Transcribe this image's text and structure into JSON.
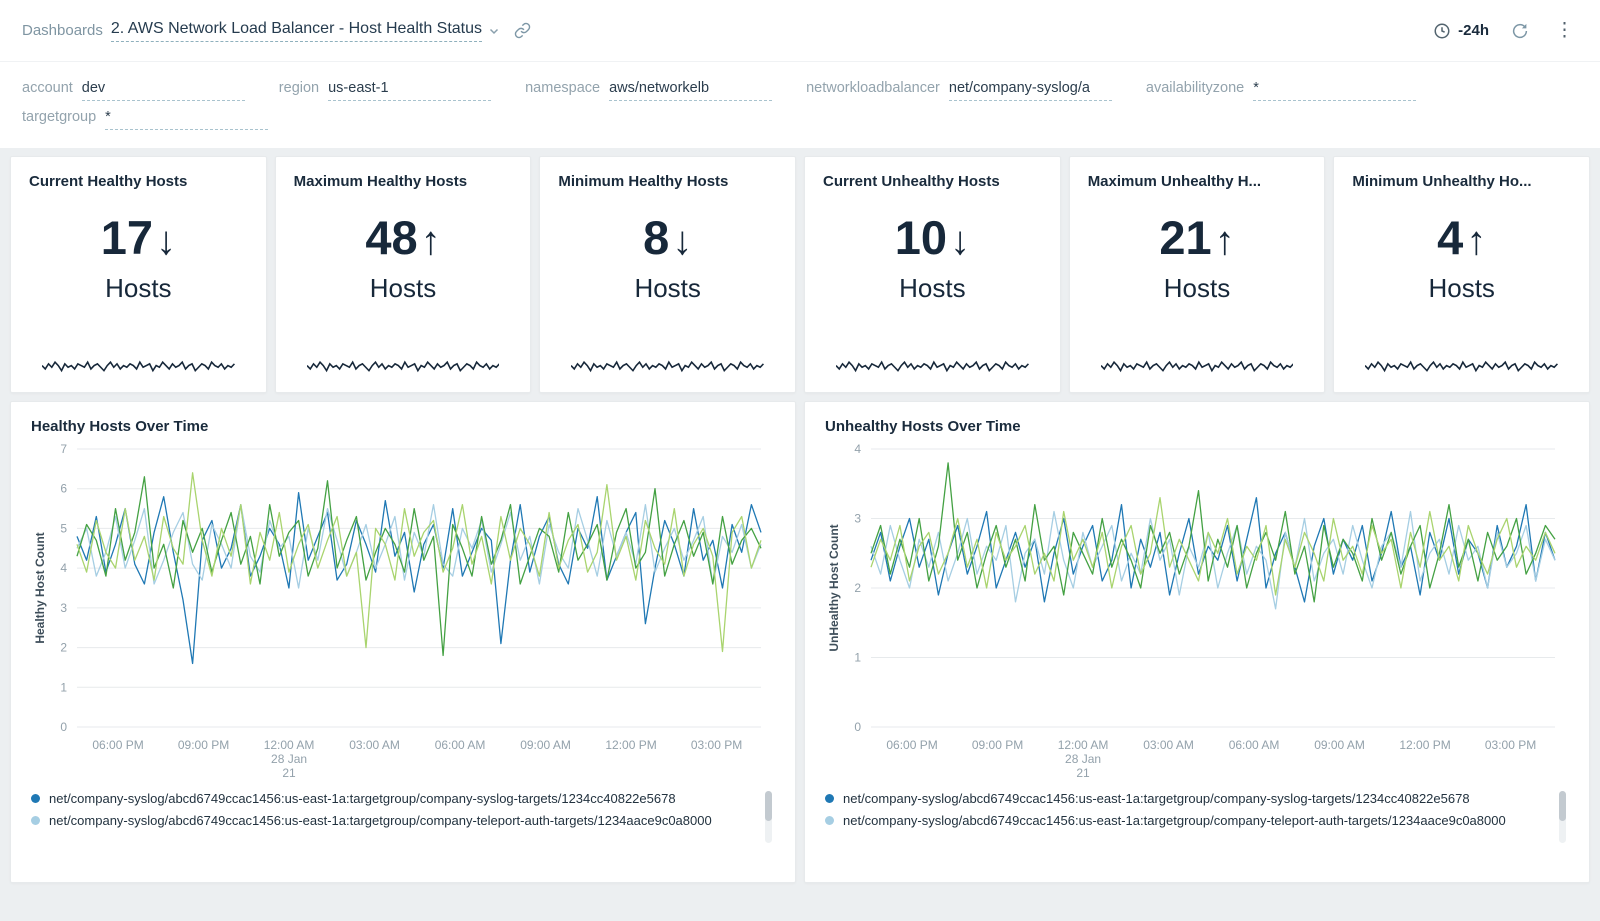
{
  "topbar": {
    "breadcrumb": "Dashboards",
    "title": "2. AWS Network Load Balancer - Host Health Status",
    "time_range": "-24h",
    "icons": {
      "dropdown": "chevron-down",
      "share": "link",
      "time": "clock",
      "refresh": "circular-arrows",
      "more": "vertical-ellipsis"
    }
  },
  "filters": [
    {
      "label": "account",
      "value": "dev"
    },
    {
      "label": "region",
      "value": "us-east-1"
    },
    {
      "label": "namespace",
      "value": "aws/networkelb"
    },
    {
      "label": "networkloadbalancer",
      "value": "net/company-syslog/a"
    },
    {
      "label": "availabilityzone",
      "value": "*"
    },
    {
      "label": "targetgroup",
      "value": "*"
    }
  ],
  "stat_panels": [
    {
      "title": "Current Healthy Hosts",
      "value": "17",
      "arrow": "↓",
      "unit": "Hosts"
    },
    {
      "title": "Maximum Healthy Hosts",
      "value": "48",
      "arrow": "↑",
      "unit": "Hosts"
    },
    {
      "title": "Minimum Healthy Hosts",
      "value": "8",
      "arrow": "↓",
      "unit": "Hosts"
    },
    {
      "title": "Current Unhealthy Hosts",
      "value": "10",
      "arrow": "↓",
      "unit": "Hosts"
    },
    {
      "title": "Maximum Unhealthy H...",
      "value": "21",
      "arrow": "↑",
      "unit": "Hosts"
    },
    {
      "title": "Minimum Unhealthy Ho...",
      "value": "4",
      "arrow": "↑",
      "unit": "Hosts"
    }
  ],
  "sparkline": [
    5,
    3,
    6,
    4,
    7,
    5,
    2,
    6,
    4,
    5,
    3,
    6,
    5,
    4,
    7,
    3,
    5,
    6,
    4,
    2,
    5,
    7,
    4,
    6,
    3,
    5,
    4,
    6,
    5,
    3,
    7,
    4,
    5,
    6,
    2,
    5,
    4,
    7,
    5,
    3,
    6,
    4,
    5,
    7,
    3,
    5,
    6,
    2,
    4,
    6,
    5,
    3,
    7,
    5,
    4,
    6,
    3,
    5,
    4,
    6
  ],
  "colors": {
    "accent_navy": "#17283a",
    "series": [
      "#1f78b4",
      "#a6cee3",
      "#44a143",
      "#a9d46e"
    ],
    "grid": "#e7eaec",
    "tick_text": "#93a1ab"
  },
  "chart_data": [
    {
      "type": "line",
      "title": "Healthy Hosts Over Time",
      "ylabel": "Healthy Host Count",
      "ylim": [
        0,
        7
      ],
      "yticks": [
        0,
        1,
        2,
        3,
        4,
        5,
        6,
        7
      ],
      "xticks": [
        {
          "pos": 0.06,
          "lines": [
            "06:00 PM"
          ]
        },
        {
          "pos": 0.185,
          "lines": [
            "09:00 PM"
          ]
        },
        {
          "pos": 0.31,
          "lines": [
            "12:00 AM",
            "28 Jan",
            "21"
          ]
        },
        {
          "pos": 0.435,
          "lines": [
            "03:00 AM"
          ]
        },
        {
          "pos": 0.56,
          "lines": [
            "06:00 AM"
          ]
        },
        {
          "pos": 0.685,
          "lines": [
            "09:00 AM"
          ]
        },
        {
          "pos": 0.81,
          "lines": [
            "12:00 PM"
          ]
        },
        {
          "pos": 0.935,
          "lines": [
            "03:00 PM"
          ]
        }
      ],
      "series": [
        {
          "name": "net/company-syslog/abcd6749ccac1456:us-east-1a:targetgroup/company-syslog-targets/1234cc40822e5678",
          "color": "#1f78b4",
          "values": [
            4.8,
            4.2,
            5.3,
            3.9,
            4.6,
            5.5,
            4.1,
            3.6,
            4.9,
            5.8,
            4.4,
            3.2,
            1.6,
            4.7,
            5.2,
            4.0,
            4.5,
            5.6,
            3.8,
            4.3,
            5.0,
            4.6,
            3.5,
            5.9,
            4.2,
            4.8,
            5.4,
            3.7,
            4.1,
            5.2,
            4.6,
            3.9,
            5.7,
            4.3,
            4.9,
            3.4,
            4.6,
            5.1,
            4.0,
            5.5,
            3.8,
            4.4,
            5.0,
            4.7,
            2.1,
            4.2,
            5.6,
            3.9,
            4.8,
            5.3,
            4.1,
            3.6,
            5.0,
            4.5,
            5.8,
            3.7,
            4.3,
            4.9,
            5.4,
            2.6,
            4.0,
            5.2,
            4.6,
            3.8,
            5.5,
            4.2,
            4.7,
            3.5,
            5.1,
            4.4,
            5.6,
            4.9
          ]
        },
        {
          "name": "net/company-syslog/abcd6749ccac1456:us-east-1a:targetgroup/company-teleport-auth-targets/1234aace9c0a8000",
          "color": "#a6cee3",
          "values": [
            4.5,
            5.0,
            3.8,
            4.4,
            5.3,
            4.0,
            4.7,
            5.5,
            3.6,
            4.2,
            4.9,
            5.4,
            4.1,
            3.7,
            5.1,
            4.6,
            4.0,
            5.6,
            4.3,
            3.9,
            5.2,
            4.5,
            4.8,
            3.5,
            5.0,
            4.2,
            5.5,
            4.7,
            3.8,
            4.4,
            5.1,
            4.0,
            4.6,
            5.3,
            3.7,
            4.9,
            4.3,
            5.6,
            4.1,
            3.8,
            5.0,
            4.5,
            5.2,
            3.9,
            4.6,
            5.4,
            4.2,
            4.8,
            3.6,
            5.1,
            4.4,
            4.0,
            5.5,
            4.7,
            3.8,
            5.2,
            4.3,
            4.9,
            4.1,
            5.6,
            3.9,
            4.5,
            5.0,
            4.2,
            4.7,
            5.3,
            3.6,
            4.8,
            4.4,
            5.1,
            4.0,
            4.6
          ]
        },
        {
          "name": "",
          "color": "#44a143",
          "values": [
            4.3,
            5.1,
            4.7,
            3.8,
            5.5,
            4.2,
            4.9,
            6.3,
            4.0,
            4.6,
            3.5,
            5.2,
            4.4,
            5.0,
            3.9,
            4.7,
            5.4,
            4.1,
            4.8,
            3.6,
            5.6,
            4.3,
            4.9,
            5.2,
            3.8,
            4.5,
            6.2,
            4.0,
            4.7,
            5.3,
            3.7,
            4.4,
            5.0,
            4.6,
            3.9,
            5.5,
            4.2,
            4.8,
            1.8,
            5.1,
            4.5,
            3.8,
            5.3,
            4.1,
            4.7,
            5.6,
            3.6,
            4.3,
            5.0,
            4.8,
            3.9,
            5.4,
            4.2,
            4.6,
            5.1,
            3.7,
            4.9,
            5.5,
            4.0,
            4.4,
            6.0,
            3.8,
            4.6,
            5.2,
            4.3,
            4.9,
            3.6,
            5.3,
            4.1,
            4.7,
            5.0,
            4.5
          ]
        },
        {
          "name": "",
          "color": "#a9d46e",
          "values": [
            4.6,
            3.9,
            5.2,
            4.4,
            4.0,
            5.5,
            4.2,
            4.8,
            3.7,
            5.3,
            4.5,
            4.1,
            6.4,
            4.7,
            3.8,
            5.0,
            4.3,
            5.6,
            3.6,
            4.9,
            4.2,
            5.4,
            3.9,
            4.6,
            5.1,
            4.0,
            4.7,
            5.3,
            3.8,
            4.4,
            2.0,
            5.0,
            4.6,
            3.7,
            5.5,
            4.3,
            4.9,
            5.2,
            3.9,
            4.5,
            5.6,
            4.1,
            4.8,
            3.6,
            5.3,
            4.2,
            5.0,
            4.6,
            3.8,
            5.4,
            4.0,
            4.7,
            5.1,
            3.9,
            4.4,
            6.1,
            4.2,
            4.8,
            3.7,
            5.2,
            4.5,
            4.1,
            5.5,
            3.8,
            4.6,
            5.0,
            4.3,
            1.9,
            4.9,
            5.3,
            4.0,
            4.7
          ]
        }
      ],
      "legend": [
        {
          "color": "#1f78b4",
          "label": "net/company-syslog/abcd6749ccac1456:us-east-1a:targetgroup/company-syslog-targets/1234cc40822e5678"
        },
        {
          "color": "#a6cee3",
          "label": "net/company-syslog/abcd6749ccac1456:us-east-1a:targetgroup/company-teleport-auth-targets/1234aace9c0a8000"
        }
      ]
    },
    {
      "type": "line",
      "title": "Unhealthy Hosts Over Time",
      "ylabel": "UnHealthy Host Count",
      "ylim": [
        0,
        4
      ],
      "yticks": [
        0,
        1,
        2,
        3,
        4
      ],
      "xticks": [
        {
          "pos": 0.06,
          "lines": [
            "06:00 PM"
          ]
        },
        {
          "pos": 0.185,
          "lines": [
            "09:00 PM"
          ]
        },
        {
          "pos": 0.31,
          "lines": [
            "12:00 AM",
            "28 Jan",
            "21"
          ]
        },
        {
          "pos": 0.435,
          "lines": [
            "03:00 AM"
          ]
        },
        {
          "pos": 0.56,
          "lines": [
            "06:00 AM"
          ]
        },
        {
          "pos": 0.685,
          "lines": [
            "09:00 AM"
          ]
        },
        {
          "pos": 0.81,
          "lines": [
            "12:00 PM"
          ]
        },
        {
          "pos": 0.935,
          "lines": [
            "03:00 PM"
          ]
        }
      ],
      "series": [
        {
          "name": "net/company-syslog/abcd6749ccac1456:us-east-1a:targetgroup/company-syslog-targets/1234cc40822e5678",
          "color": "#1f78b4",
          "values": [
            2.4,
            2.8,
            2.1,
            2.6,
            3.0,
            2.3,
            2.7,
            1.9,
            2.5,
            2.9,
            2.2,
            2.6,
            3.1,
            2.0,
            2.4,
            2.8,
            2.3,
            2.7,
            1.8,
            2.5,
            3.0,
            2.2,
            2.6,
            2.9,
            2.1,
            2.4,
            3.2,
            2.0,
            2.7,
            2.3,
            2.8,
            1.9,
            2.5,
            3.0,
            2.2,
            2.6,
            2.4,
            2.9,
            2.1,
            2.7,
            3.3,
            2.0,
            2.5,
            2.8,
            2.3,
            1.8,
            2.6,
            3.0,
            2.2,
            2.7,
            2.4,
            2.9,
            2.1,
            2.5,
            3.1,
            2.3,
            2.6,
            1.9,
            2.8,
            2.4,
            3.0,
            2.2,
            2.7,
            2.5,
            2.0,
            2.9,
            2.3,
            2.6,
            3.2,
            2.1,
            2.8,
            2.4
          ]
        },
        {
          "name": "net/company-syslog/abcd6749ccac1456:us-east-1a:targetgroup/company-teleport-auth-targets/1234aace9c0a8000",
          "color": "#a6cee3",
          "values": [
            2.6,
            2.2,
            2.9,
            2.4,
            2.0,
            2.7,
            2.3,
            2.8,
            2.1,
            2.5,
            3.0,
            2.2,
            2.6,
            2.4,
            2.9,
            1.8,
            2.5,
            2.7,
            2.2,
            3.1,
            2.4,
            2.0,
            2.8,
            2.3,
            2.6,
            2.9,
            2.1,
            2.5,
            2.2,
            3.0,
            2.4,
            2.7,
            1.9,
            2.6,
            2.3,
            2.8,
            2.0,
            2.5,
            2.9,
            2.2,
            2.6,
            2.4,
            1.7,
            2.8,
            2.3,
            3.0,
            2.1,
            2.5,
            2.7,
            2.2,
            2.9,
            2.4,
            2.0,
            2.6,
            2.8,
            2.3,
            3.1,
            2.1,
            2.5,
            2.7,
            2.2,
            2.9,
            2.4,
            2.6,
            2.0,
            2.8,
            2.3,
            2.5,
            2.9,
            2.1,
            2.7,
            2.4
          ]
        },
        {
          "name": "",
          "color": "#44a143",
          "values": [
            2.5,
            2.9,
            2.2,
            2.7,
            2.3,
            3.0,
            2.1,
            2.6,
            3.8,
            2.4,
            2.8,
            2.0,
            2.5,
            2.9,
            2.3,
            2.7,
            2.1,
            3.2,
            2.4,
            2.6,
            1.9,
            2.8,
            2.5,
            2.2,
            3.0,
            2.3,
            2.7,
            2.4,
            2.0,
            2.9,
            2.5,
            2.8,
            2.2,
            2.6,
            3.4,
            2.1,
            2.7,
            2.3,
            2.9,
            2.0,
            2.5,
            2.8,
            2.4,
            3.1,
            2.2,
            2.6,
            1.8,
            2.9,
            2.3,
            2.7,
            2.5,
            2.1,
            3.0,
            2.4,
            2.8,
            2.2,
            2.6,
            2.9,
            2.0,
            2.5,
            3.2,
            2.3,
            2.7,
            2.1,
            2.8,
            2.4,
            2.6,
            3.0,
            2.2,
            2.5,
            2.9,
            2.7
          ]
        },
        {
          "name": "",
          "color": "#a9d46e",
          "values": [
            2.3,
            2.7,
            2.4,
            2.9,
            2.1,
            2.6,
            2.8,
            2.2,
            2.5,
            3.0,
            2.3,
            2.7,
            2.0,
            2.8,
            2.4,
            2.6,
            2.9,
            2.2,
            2.5,
            2.1,
            3.1,
            2.4,
            2.7,
            2.3,
            2.8,
            2.0,
            2.6,
            2.9,
            2.2,
            2.5,
            3.3,
            2.3,
            2.7,
            2.4,
            2.1,
            2.8,
            2.5,
            3.0,
            2.2,
            2.6,
            2.4,
            2.9,
            1.9,
            2.7,
            2.3,
            2.8,
            2.5,
            2.1,
            3.0,
            2.4,
            2.6,
            2.2,
            2.9,
            2.5,
            2.7,
            2.0,
            2.8,
            2.3,
            3.1,
            2.4,
            2.6,
            2.1,
            2.9,
            2.5,
            2.2,
            2.7,
            3.0,
            2.3,
            2.6,
            2.4,
            2.8,
            2.5
          ]
        }
      ],
      "legend": [
        {
          "color": "#1f78b4",
          "label": "net/company-syslog/abcd6749ccac1456:us-east-1a:targetgroup/company-syslog-targets/1234cc40822e5678"
        },
        {
          "color": "#a6cee3",
          "label": "net/company-syslog/abcd6749ccac1456:us-east-1a:targetgroup/company-teleport-auth-targets/1234aace9c0a8000"
        }
      ]
    }
  ]
}
